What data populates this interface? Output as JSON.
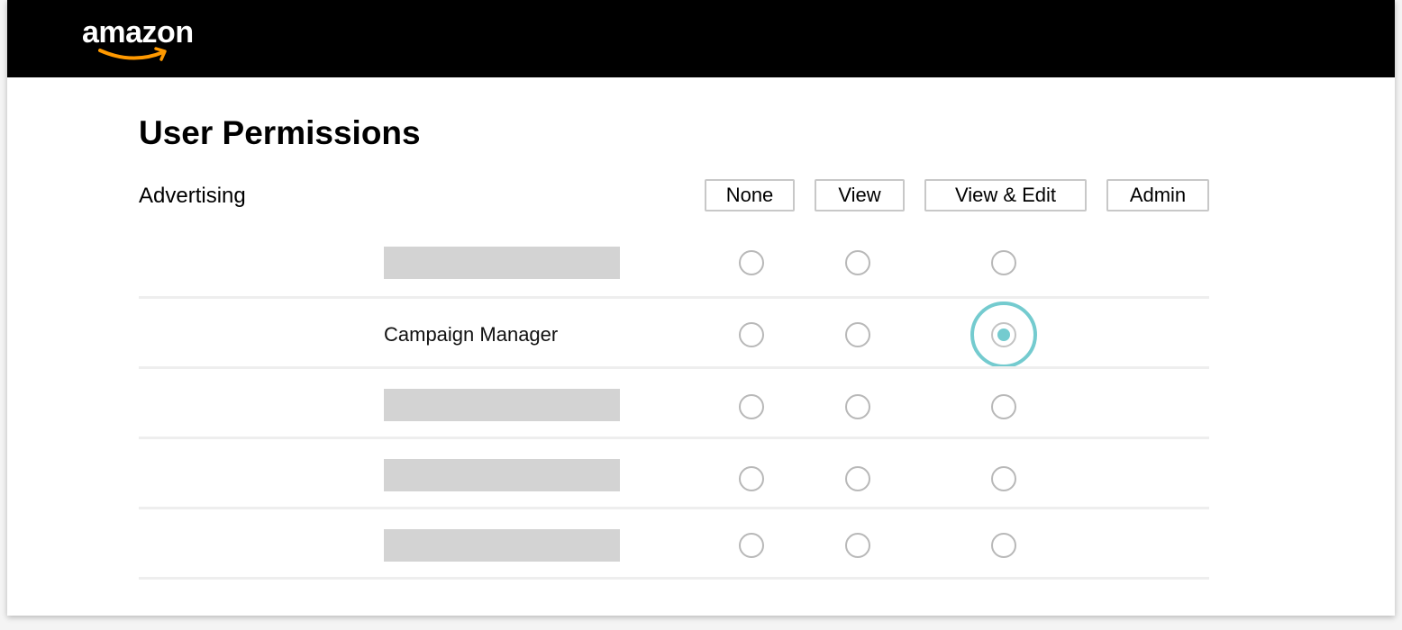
{
  "header": {
    "logo_text": "amazon",
    "background_color": "#000000",
    "smile_color": "#ff9900"
  },
  "page": {
    "title": "User Permissions",
    "section_label": "Advertising"
  },
  "columns": {
    "none": "None",
    "view": "View",
    "view_edit": "View & Edit",
    "admin": "Admin"
  },
  "rows": [
    {
      "label": "",
      "placeholder": true,
      "selected": null
    },
    {
      "label": "Campaign Manager",
      "placeholder": false,
      "selected": "view_edit"
    },
    {
      "label": "",
      "placeholder": true,
      "selected": null
    },
    {
      "label": "",
      "placeholder": true,
      "selected": null
    },
    {
      "label": "",
      "placeholder": true,
      "selected": null
    }
  ],
  "colors": {
    "accent": "#74cbcf",
    "placeholder_bar": "#d3d3d3",
    "radio_border": "#b8b8b8"
  }
}
